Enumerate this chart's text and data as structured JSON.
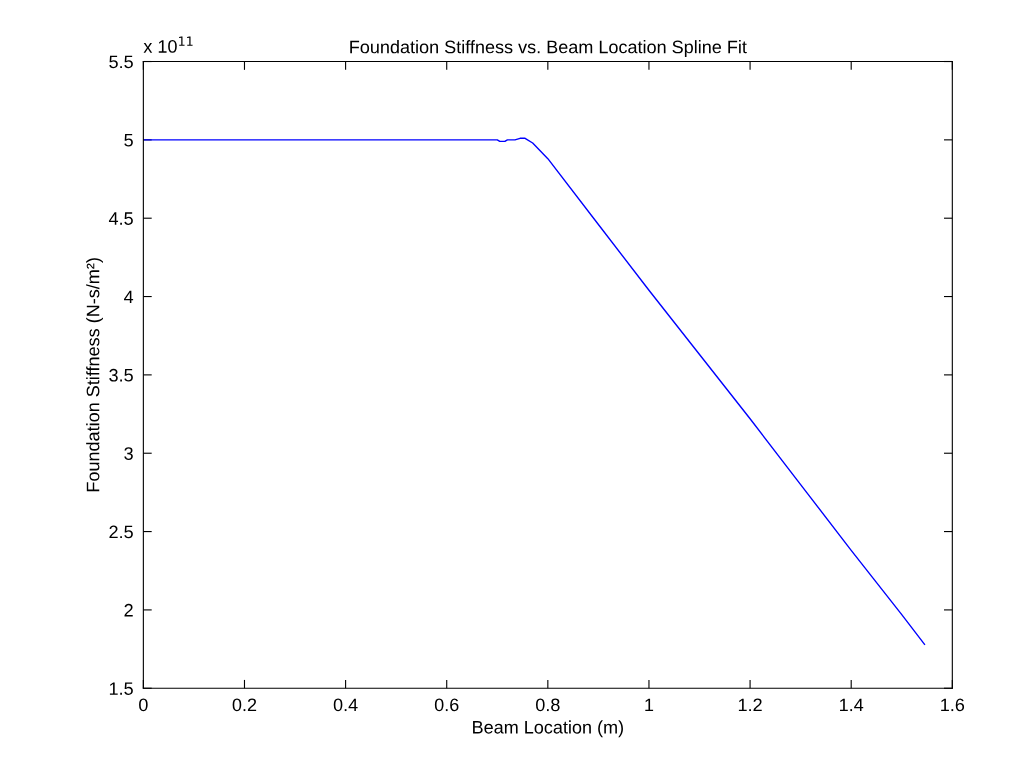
{
  "chart_data": {
    "type": "line",
    "title": "Foundation Stiffness vs. Beam Location Spline Fit",
    "xlabel": "Beam Location (m)",
    "ylabel": "Foundation Stiffness (N-s/m²)",
    "annotations": [
      "x 10$^{11}$"
    ],
    "x": [
      0,
      0.2,
      0.4,
      0.6,
      0.7,
      0.705,
      0.715,
      0.72,
      0.735,
      0.745,
      0.755,
      0.77,
      0.8,
      0.9,
      1.0,
      1.1,
      1.2,
      1.3,
      1.4,
      1.5,
      1.545
    ],
    "series": [
      {
        "color": "#0000ff",
        "values": [
          5.0,
          5.0,
          5.0,
          5.0,
          5.0,
          4.99,
          4.99,
          5.0,
          5.0,
          5.01,
          5.01,
          4.98,
          4.88,
          4.46,
          4.04,
          3.63,
          3.22,
          2.8,
          2.38,
          1.97,
          1.78
        ]
      }
    ],
    "xlim": [
      0,
      1.6
    ],
    "xticks": [
      0,
      0.2,
      0.4,
      0.6,
      0.8,
      1,
      1.2,
      1.4,
      1.6
    ],
    "ylim": [
      1.5,
      5.5
    ],
    "yticks": [
      1.5,
      2,
      2.5,
      3,
      3.5,
      4,
      4.5,
      5,
      5.5
    ],
    "grid": false,
    "marker": "none",
    "line_style": "solid"
  }
}
